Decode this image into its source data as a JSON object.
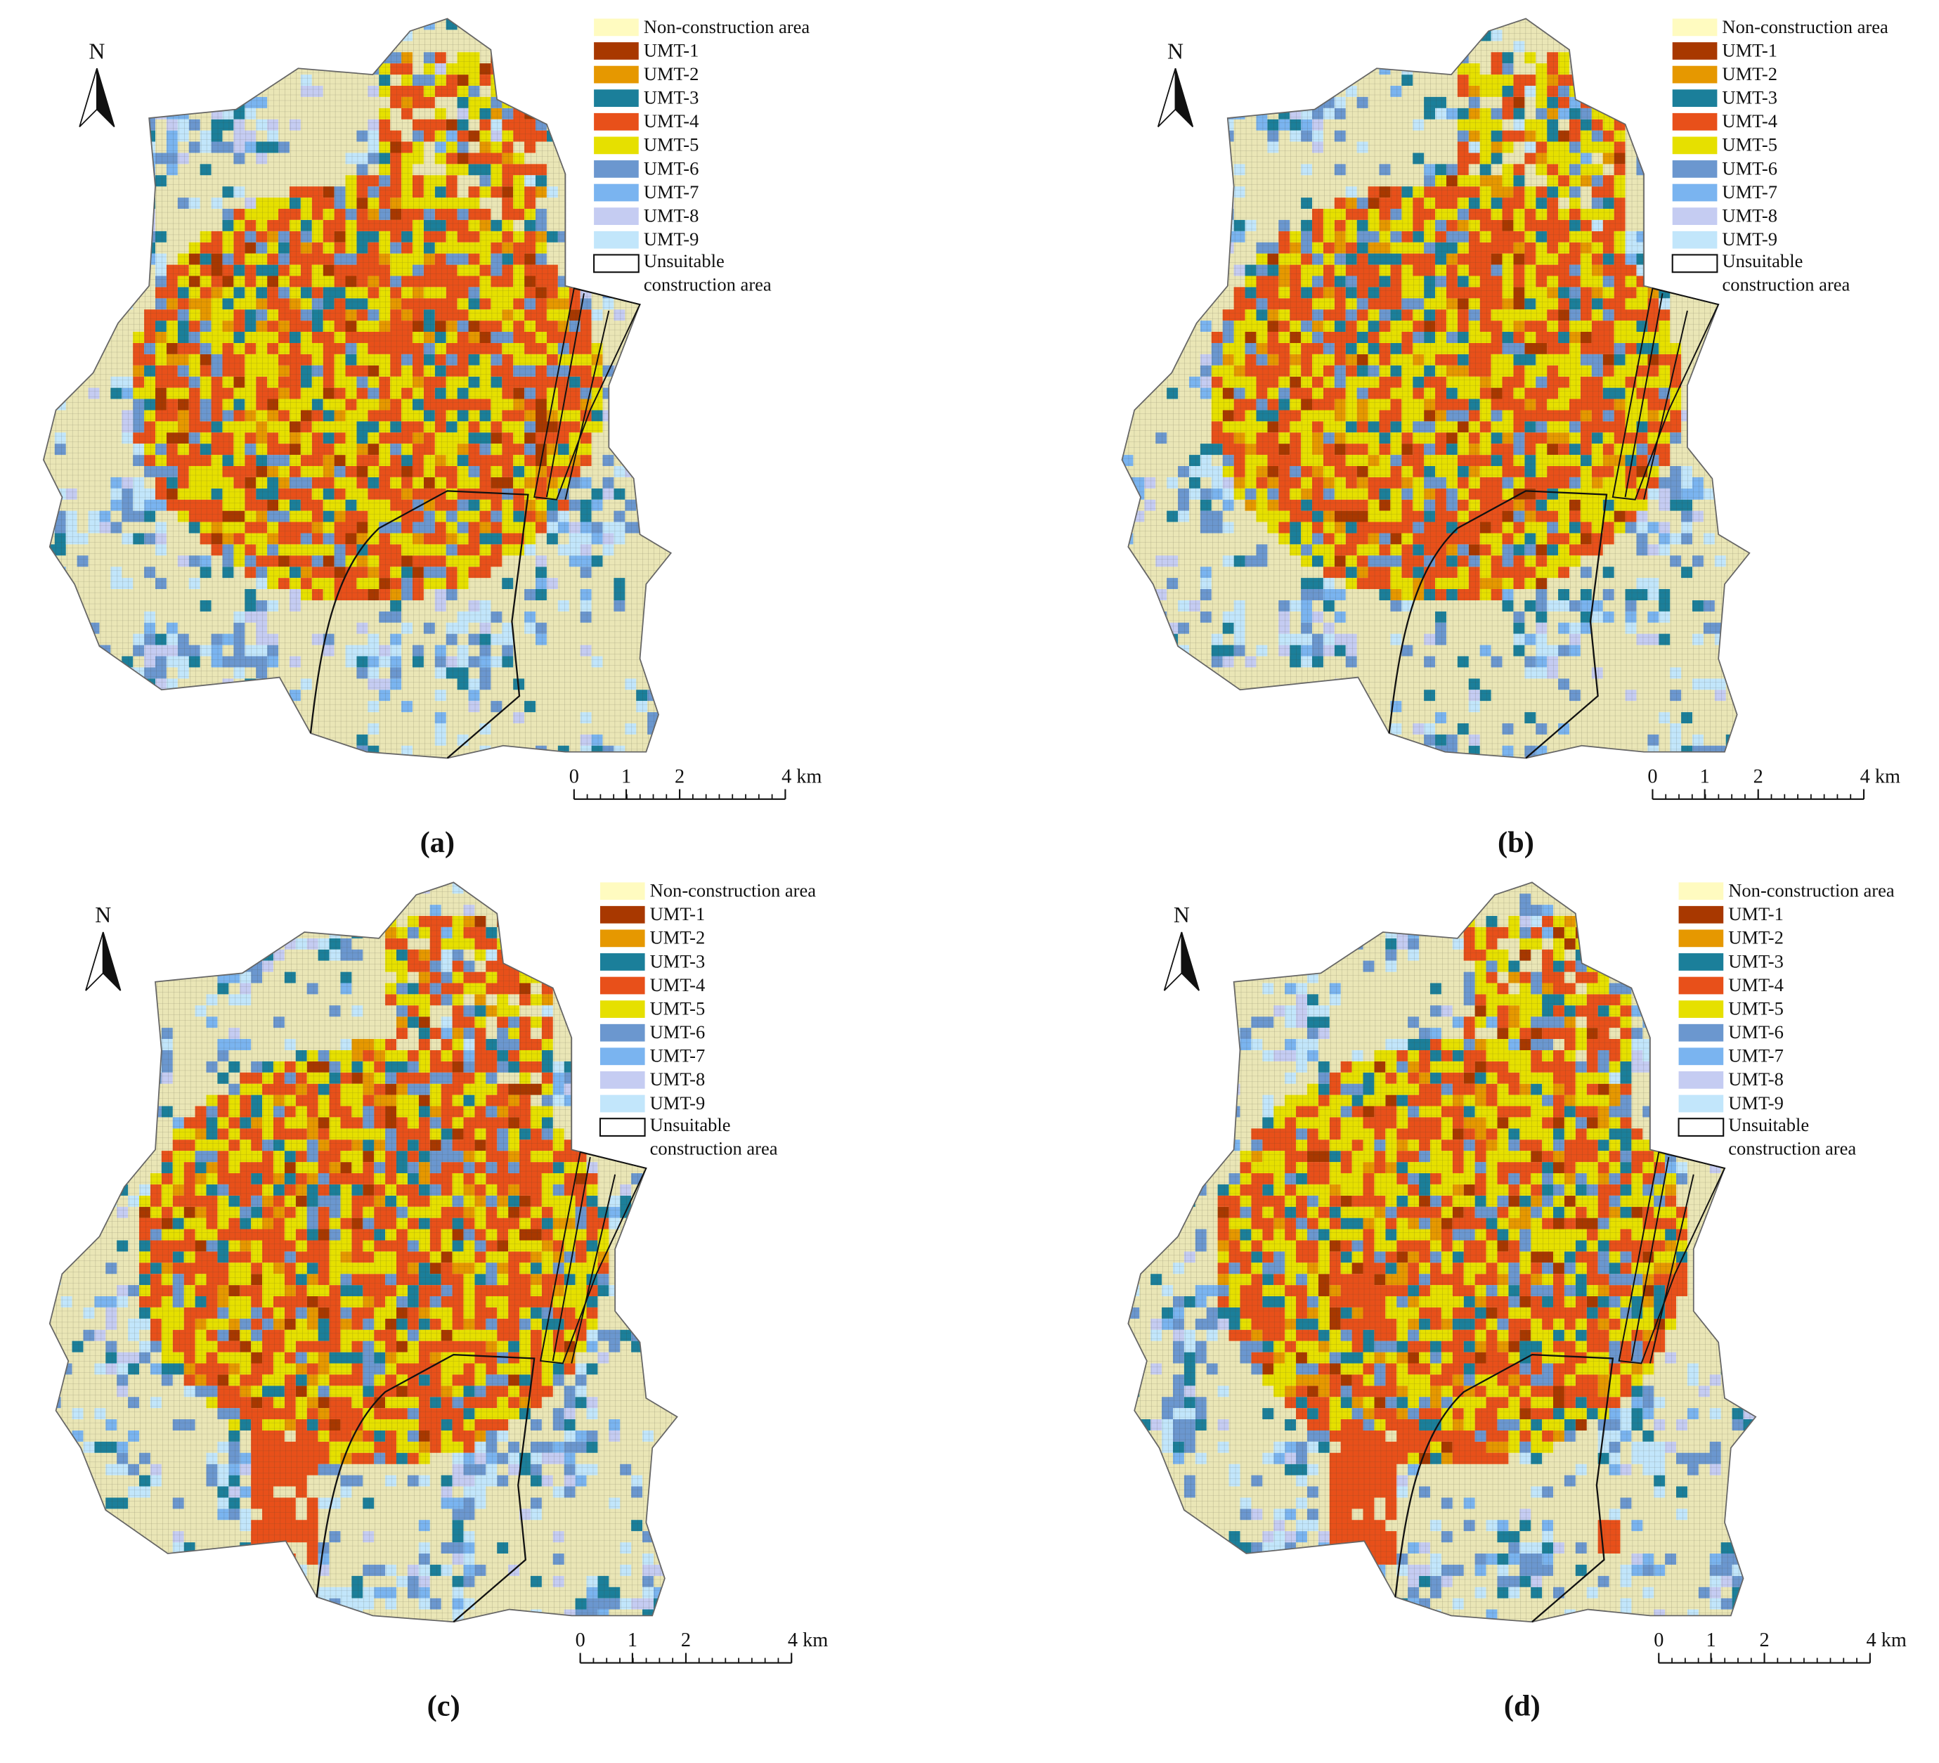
{
  "panels": [
    {
      "caption": "(a)",
      "north": "N",
      "scale": [
        "0",
        "1",
        "2",
        "4 km"
      ],
      "legend": [
        {
          "label": "Non-construction area",
          "color": "#fffbc0"
        },
        {
          "label": "UMT-1",
          "color": "#a83800"
        },
        {
          "label": "UMT-2",
          "color": "#e69800"
        },
        {
          "label": "UMT-3",
          "color": "#1b7f9a"
        },
        {
          "label": "UMT-4",
          "color": "#e8501a"
        },
        {
          "label": "UMT-5",
          "color": "#e6e000"
        },
        {
          "label": "UMT-6",
          "color": "#6b97cf"
        },
        {
          "label": "UMT-7",
          "color": "#7ab4f0"
        },
        {
          "label": "UMT-8",
          "color": "#c5ccf2"
        },
        {
          "label": "UMT-9",
          "color": "#c2e6fb"
        },
        {
          "label": "Unsuitable construction area",
          "color": "#ffffff"
        }
      ]
    },
    {
      "caption": "(b)",
      "north": "N",
      "scale": [
        "0",
        "1",
        "2",
        "4 km"
      ],
      "legend": [
        {
          "label": "Non-construction area",
          "color": "#fffbc0"
        },
        {
          "label": "UMT-1",
          "color": "#a83800"
        },
        {
          "label": "UMT-2",
          "color": "#e69800"
        },
        {
          "label": "UMT-3",
          "color": "#1b7f9a"
        },
        {
          "label": "UMT-4",
          "color": "#e8501a"
        },
        {
          "label": "UMT-5",
          "color": "#e6e000"
        },
        {
          "label": "UMT-6",
          "color": "#6b97cf"
        },
        {
          "label": "UMT-7",
          "color": "#7ab4f0"
        },
        {
          "label": "UMT-8",
          "color": "#c5ccf2"
        },
        {
          "label": "UMT-9",
          "color": "#c2e6fb"
        },
        {
          "label": "Unsuitable construction area",
          "color": "#ffffff"
        }
      ]
    },
    {
      "caption": "(c)",
      "north": "N",
      "scale": [
        "0",
        "1",
        "2",
        "4 km"
      ],
      "legend": [
        {
          "label": "Non-construction area",
          "color": "#fffbc0"
        },
        {
          "label": "UMT-1",
          "color": "#a83800"
        },
        {
          "label": "UMT-2",
          "color": "#e69800"
        },
        {
          "label": "UMT-3",
          "color": "#1b7f9a"
        },
        {
          "label": "UMT-4",
          "color": "#e8501a"
        },
        {
          "label": "UMT-5",
          "color": "#e6e000"
        },
        {
          "label": "UMT-6",
          "color": "#6b97cf"
        },
        {
          "label": "UMT-7",
          "color": "#7ab4f0"
        },
        {
          "label": "UMT-8",
          "color": "#c5ccf2"
        },
        {
          "label": "UMT-9",
          "color": "#c2e6fb"
        },
        {
          "label": "Unsuitable construction area",
          "color": "#ffffff"
        }
      ]
    },
    {
      "caption": "(d)",
      "north": "N",
      "scale": [
        "0",
        "1",
        "2",
        "4 km"
      ],
      "legend": [
        {
          "label": "Non-construction area",
          "color": "#fffbc0"
        },
        {
          "label": "UMT-1",
          "color": "#a83800"
        },
        {
          "label": "UMT-2",
          "color": "#e69800"
        },
        {
          "label": "UMT-3",
          "color": "#1b7f9a"
        },
        {
          "label": "UMT-4",
          "color": "#e8501a"
        },
        {
          "label": "UMT-5",
          "color": "#e6e000"
        },
        {
          "label": "UMT-6",
          "color": "#6b97cf"
        },
        {
          "label": "UMT-7",
          "color": "#7ab4f0"
        },
        {
          "label": "UMT-8",
          "color": "#c5ccf2"
        },
        {
          "label": "UMT-9",
          "color": "#c2e6fb"
        },
        {
          "label": "Unsuitable construction area",
          "color": "#ffffff"
        }
      ]
    }
  ]
}
